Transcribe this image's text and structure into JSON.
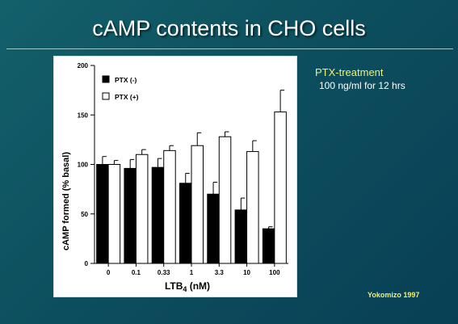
{
  "slide": {
    "title": "cAMP contents in CHO cells",
    "treatment_title": "PTX-treatment",
    "treatment_detail": "100 ng/ml for 12 hrs",
    "citation": "Yokomizo 1997"
  },
  "colors": {
    "background": "#0d4f5e",
    "accent_text": "#f0f06e",
    "series_ptx_minus": "#000000",
    "series_ptx_plus": "#ffffff"
  },
  "chart_data": {
    "type": "bar",
    "ylabel": "cAMP formed (% basal)",
    "xlabel": "LTB",
    "xlabel_subscript": "4",
    "xlabel_unit": " (nM)",
    "ylim": [
      0,
      200
    ],
    "yticks": [
      0,
      50,
      100,
      150,
      200
    ],
    "categories": [
      "0",
      "0.1",
      "0.33",
      "1",
      "3.3",
      "10",
      "100"
    ],
    "legend_position": "top-left",
    "series": [
      {
        "name": "PTX (-)",
        "fill": "#000000",
        "values": [
          100,
          96,
          97,
          81,
          70,
          54,
          35
        ],
        "errors": [
          8,
          9,
          9,
          10,
          12,
          12,
          2
        ]
      },
      {
        "name": "PTX (+)",
        "fill": "#ffffff",
        "values": [
          100,
          110,
          114,
          119,
          128,
          113,
          153
        ],
        "errors": [
          4,
          5,
          5,
          13,
          5,
          11,
          22
        ]
      }
    ]
  }
}
